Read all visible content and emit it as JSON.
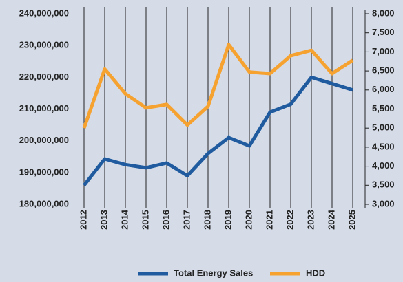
{
  "chart_data": {
    "type": "line",
    "x": [
      "2012",
      "2013",
      "2014",
      "2015",
      "2016",
      "2017",
      "2018",
      "2019",
      "2020",
      "2021",
      "2022",
      "2023",
      "2024",
      "2025"
    ],
    "series": [
      {
        "name": "Total Energy Sales",
        "color": "#1f5b9e",
        "values": [
          186000000,
          194300000,
          192500000,
          191500000,
          193000000,
          189000000,
          196000000,
          201000000,
          198400000,
          209000000,
          211500000,
          220000000,
          218000000,
          216000000
        ]
      },
      {
        "name": "HDD",
        "color": "#f5a231",
        "axis": "y2",
        "values": [
          5000,
          6550,
          5900,
          5530,
          5620,
          5080,
          5570,
          7190,
          6470,
          6430,
          6900,
          7040,
          6430,
          6780
        ]
      }
    ],
    "ylim": [
      180000000,
      240000000
    ],
    "yticks": [
      {
        "value": 180000000,
        "label": "180,000,000"
      },
      {
        "value": 190000000,
        "label": "190,000,000"
      },
      {
        "value": 200000000,
        "label": "200,000,000"
      },
      {
        "value": 210000000,
        "label": "210,000,000"
      },
      {
        "value": 220000000,
        "label": "220,000,000"
      },
      {
        "value": 230000000,
        "label": "230,000,000"
      },
      {
        "value": 240000000,
        "label": "240,000,000"
      }
    ],
    "y2lim": [
      3000,
      8000
    ],
    "y2ticks": [
      {
        "value": 3000,
        "label": "3,000"
      },
      {
        "value": 3500,
        "label": "3,500"
      },
      {
        "value": 4000,
        "label": "4,000"
      },
      {
        "value": 4500,
        "label": "4,500"
      },
      {
        "value": 5000,
        "label": "5,000"
      },
      {
        "value": 5500,
        "label": "5,500"
      },
      {
        "value": 6000,
        "label": "6,000"
      },
      {
        "value": 6500,
        "label": "6,500"
      },
      {
        "value": 7000,
        "label": "7,000"
      },
      {
        "value": 7500,
        "label": "7,500"
      },
      {
        "value": 8000,
        "label": "8,000"
      }
    ],
    "grid": true,
    "legend": "bottom"
  }
}
